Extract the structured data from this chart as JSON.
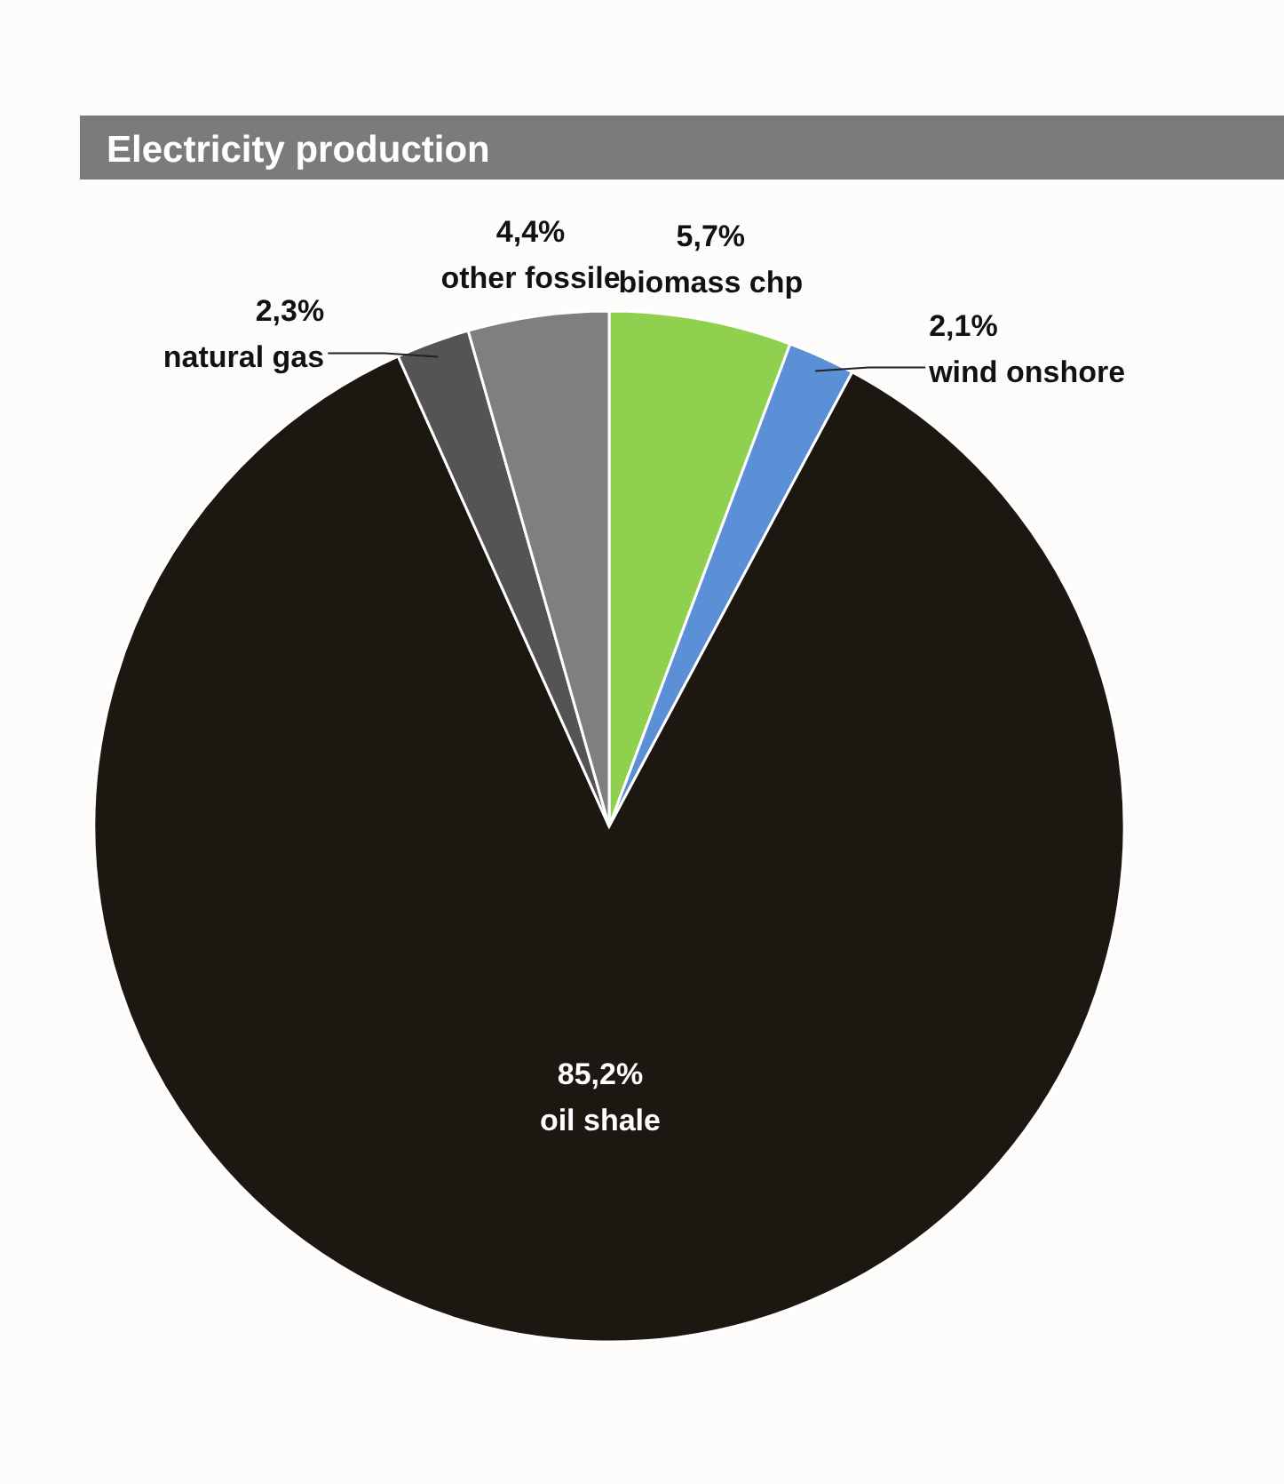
{
  "chart_data": {
    "type": "pie",
    "title": "Electricity production",
    "categories": [
      "biomass chp",
      "wind onshore",
      "oil shale",
      "natural gas",
      "other fossile"
    ],
    "values": [
      5.7,
      2.1,
      85.2,
      2.3,
      4.4
    ],
    "colors": [
      "#8fd14f",
      "#5b8fd6",
      "#1c1811",
      "#545454",
      "#7f7f7f"
    ],
    "value_labels": [
      "5,7%",
      "2,1%",
      "85,2%",
      "2,3%",
      "4,4%"
    ]
  }
}
